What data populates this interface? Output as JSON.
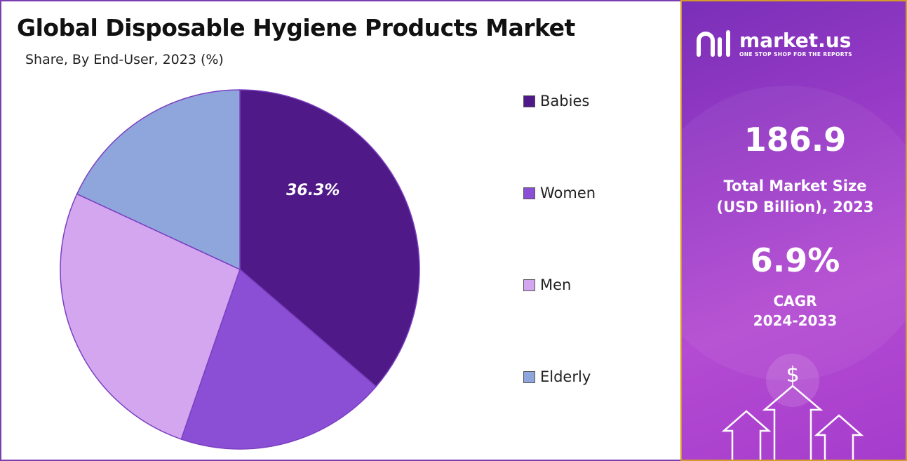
{
  "header": {
    "title": "Global Disposable Hygiene Products Market",
    "subtitle": "Share, By End-User, 2023 (%)"
  },
  "chart_data": {
    "type": "pie",
    "categories": [
      "Babies",
      "Women",
      "Men",
      "Elderly"
    ],
    "values": [
      36.3,
      19.0,
      26.6,
      18.1
    ],
    "colors": [
      "#4f1a87",
      "#8b4fd6",
      "#d3a6ef",
      "#8fa6dc"
    ],
    "data_labels": [
      "36.3%",
      "",
      "",
      ""
    ],
    "legend_position": "right",
    "start_angle_deg": 0,
    "direction": "clockwise"
  },
  "sidebar": {
    "logo": {
      "name": "market.us",
      "tagline": "ONE STOP SHOP FOR THE REPORTS",
      "icon": "market-us-logo-icon"
    },
    "market_size": {
      "value": "186.9",
      "label_line1": "Total Market Size",
      "label_line2": "(USD Billion), 2023"
    },
    "cagr": {
      "value": "6.9%",
      "label_line1": "CAGR",
      "label_line2": "2024-2033"
    },
    "decoration": {
      "icons": [
        "dollar-icon",
        "up-arrow-icon"
      ]
    }
  }
}
